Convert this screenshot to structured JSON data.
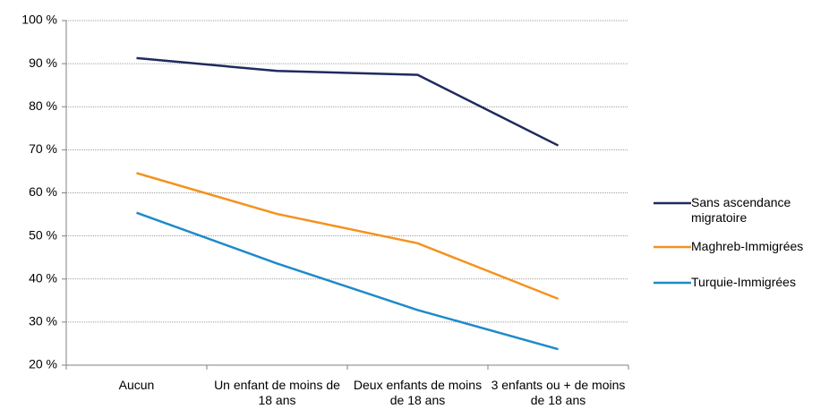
{
  "chart_data": {
    "type": "line",
    "categories": [
      "Aucun",
      "Un enfant de moins de 18 ans",
      "Deux enfants de moins de 18 ans",
      "3 enfants ou + de moins de 18 ans"
    ],
    "series": [
      {
        "name": "Sans ascendance migratoire",
        "color": "#1f2a5e",
        "values": [
          91.3,
          88.3,
          87.4,
          71.0
        ]
      },
      {
        "name": "Maghreb-Immigrées",
        "color": "#f5921e",
        "values": [
          64.6,
          55.1,
          48.3,
          35.4
        ]
      },
      {
        "name": "Turquie-Immigrées",
        "color": "#1f8ac9",
        "values": [
          55.4,
          43.6,
          32.8,
          23.7
        ]
      }
    ],
    "ylim": [
      20,
      100
    ],
    "yticks": [
      {
        "value": 20,
        "label": "20 %"
      },
      {
        "value": 30,
        "label": "30 %"
      },
      {
        "value": 40,
        "label": "40 %"
      },
      {
        "value": 50,
        "label": "50 %"
      },
      {
        "value": 60,
        "label": "60 %"
      },
      {
        "value": 70,
        "label": "70 %"
      },
      {
        "value": 80,
        "label": "80 %"
      },
      {
        "value": 90,
        "label": "90 %"
      },
      {
        "value": 100,
        "label": "100 %"
      }
    ],
    "grid": true,
    "legend": "right"
  }
}
